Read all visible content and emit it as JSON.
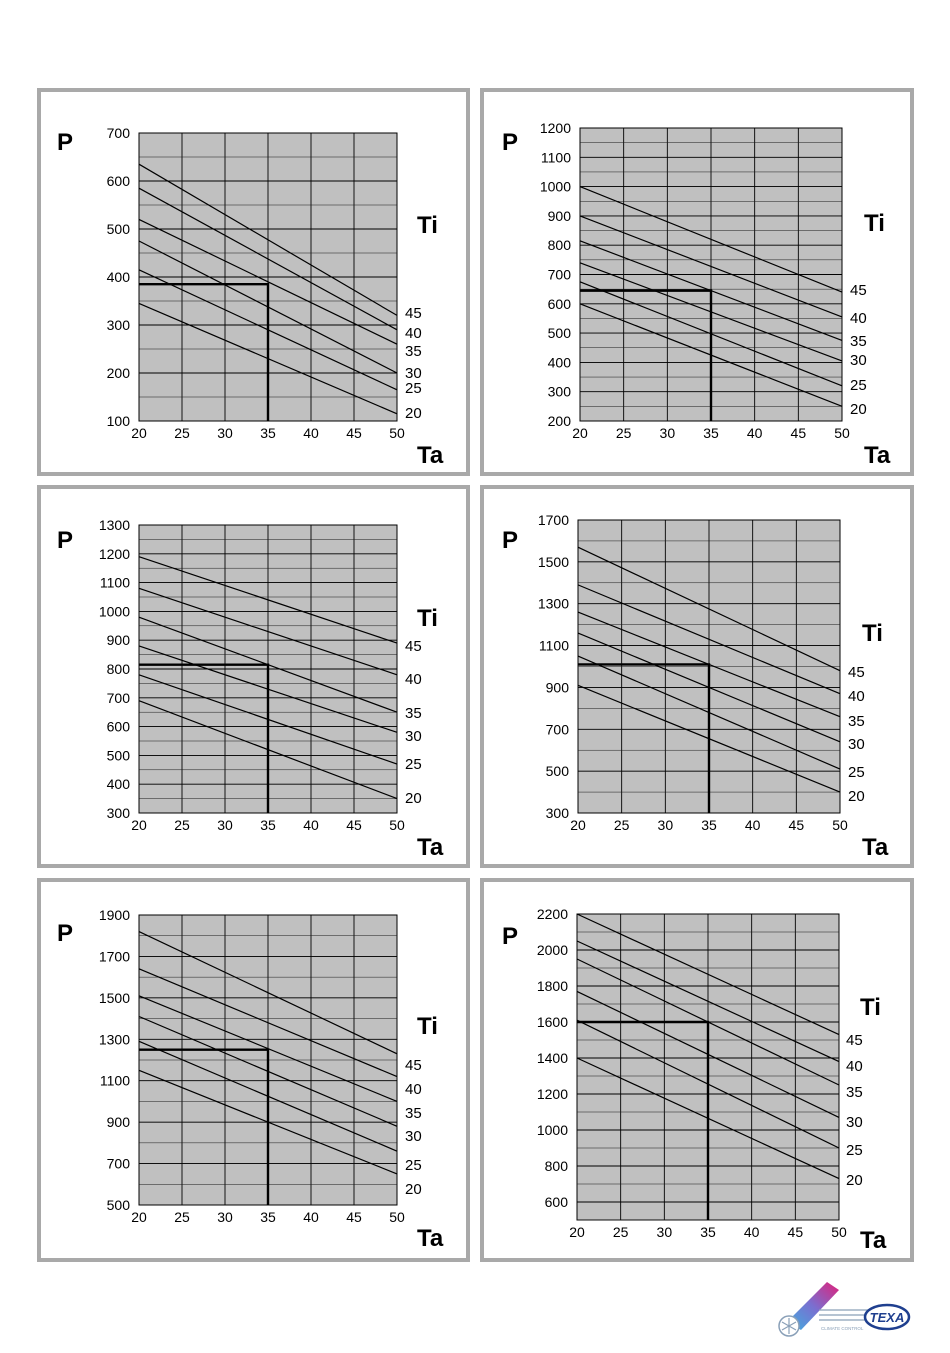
{
  "chart_data": [
    {
      "type": "line",
      "ylabel": "P",
      "xlabel": "Ta",
      "legend_title": "Ti",
      "xlim": [
        20,
        50
      ],
      "ylim": [
        100,
        700
      ],
      "xticks": [
        20,
        25,
        30,
        35,
        40,
        45,
        50
      ],
      "yticks": [
        100,
        200,
        300,
        400,
        500,
        600,
        700
      ],
      "grid": true,
      "series": [
        {
          "name": "45",
          "x": [
            20,
            50
          ],
          "y": [
            635,
            320
          ]
        },
        {
          "name": "40",
          "x": [
            20,
            50
          ],
          "y": [
            585,
            290
          ]
        },
        {
          "name": "35",
          "x": [
            20,
            50
          ],
          "y": [
            520,
            260
          ]
        },
        {
          "name": "30",
          "x": [
            20,
            50
          ],
          "y": [
            475,
            200
          ]
        },
        {
          "name": "25",
          "x": [
            20,
            50
          ],
          "y": [
            415,
            165
          ]
        },
        {
          "name": "20",
          "x": [
            20,
            50
          ],
          "y": [
            345,
            115
          ]
        }
      ],
      "marker": {
        "x": 35,
        "y": 385
      }
    },
    {
      "type": "line",
      "ylabel": "P",
      "xlabel": "Ta",
      "legend_title": "Ti",
      "xlim": [
        20,
        50
      ],
      "ylim": [
        200,
        1200
      ],
      "xticks": [
        20,
        25,
        30,
        35,
        40,
        45,
        50
      ],
      "yticks": [
        200,
        300,
        400,
        500,
        600,
        700,
        800,
        900,
        1000,
        1100,
        1200
      ],
      "grid": true,
      "series": [
        {
          "name": "45",
          "x": [
            20,
            50
          ],
          "y": [
            1000,
            640
          ]
        },
        {
          "name": "40",
          "x": [
            20,
            50
          ],
          "y": [
            900,
            555
          ]
        },
        {
          "name": "35",
          "x": [
            20,
            50
          ],
          "y": [
            815,
            475
          ]
        },
        {
          "name": "30",
          "x": [
            20,
            50
          ],
          "y": [
            740,
            405
          ]
        },
        {
          "name": "25",
          "x": [
            20,
            50
          ],
          "y": [
            675,
            320
          ]
        },
        {
          "name": "20",
          "x": [
            20,
            50
          ],
          "y": [
            600,
            250
          ]
        }
      ],
      "marker": {
        "x": 35,
        "y": 645
      }
    },
    {
      "type": "line",
      "ylabel": "P",
      "xlabel": "Ta",
      "legend_title": "Ti",
      "xlim": [
        20,
        50
      ],
      "ylim": [
        300,
        1300
      ],
      "xticks": [
        20,
        25,
        30,
        35,
        40,
        45,
        50
      ],
      "yticks": [
        300,
        400,
        500,
        600,
        700,
        800,
        900,
        1000,
        1100,
        1200,
        1300
      ],
      "grid": true,
      "series": [
        {
          "name": "45",
          "x": [
            20,
            50
          ],
          "y": [
            1190,
            890
          ]
        },
        {
          "name": "40",
          "x": [
            20,
            50
          ],
          "y": [
            1080,
            780
          ]
        },
        {
          "name": "35",
          "x": [
            20,
            50
          ],
          "y": [
            980,
            650
          ]
        },
        {
          "name": "30",
          "x": [
            20,
            50
          ],
          "y": [
            880,
            580
          ]
        },
        {
          "name": "25",
          "x": [
            20,
            50
          ],
          "y": [
            780,
            470
          ]
        },
        {
          "name": "20",
          "x": [
            20,
            50
          ],
          "y": [
            690,
            350
          ]
        }
      ],
      "marker": {
        "x": 35,
        "y": 815
      }
    },
    {
      "type": "line",
      "ylabel": "P",
      "xlabel": "Ta",
      "legend_title": "Ti",
      "xlim": [
        20,
        50
      ],
      "ylim": [
        300,
        1700
      ],
      "xticks": [
        20,
        25,
        30,
        35,
        40,
        45,
        50
      ],
      "yticks": [
        300,
        500,
        700,
        900,
        1100,
        1300,
        1500,
        1700
      ],
      "grid": true,
      "series": [
        {
          "name": "45",
          "x": [
            20,
            50
          ],
          "y": [
            1570,
            980
          ]
        },
        {
          "name": "40",
          "x": [
            20,
            50
          ],
          "y": [
            1390,
            870
          ]
        },
        {
          "name": "35",
          "x": [
            20,
            50
          ],
          "y": [
            1260,
            760
          ]
        },
        {
          "name": "30",
          "x": [
            20,
            50
          ],
          "y": [
            1160,
            640
          ]
        },
        {
          "name": "25",
          "x": [
            20,
            50
          ],
          "y": [
            1050,
            510
          ]
        },
        {
          "name": "20",
          "x": [
            20,
            50
          ],
          "y": [
            910,
            400
          ]
        }
      ],
      "marker": {
        "x": 35,
        "y": 1010
      }
    },
    {
      "type": "line",
      "ylabel": "P",
      "xlabel": "Ta",
      "legend_title": "Ti",
      "xlim": [
        20,
        50
      ],
      "ylim": [
        500,
        1900
      ],
      "xticks": [
        20,
        25,
        30,
        35,
        40,
        45,
        50
      ],
      "yticks": [
        500,
        700,
        900,
        1100,
        1300,
        1500,
        1700,
        1900
      ],
      "grid": true,
      "series": [
        {
          "name": "45",
          "x": [
            20,
            50
          ],
          "y": [
            1820,
            1230
          ]
        },
        {
          "name": "40",
          "x": [
            20,
            50
          ],
          "y": [
            1640,
            1120
          ]
        },
        {
          "name": "35",
          "x": [
            20,
            50
          ],
          "y": [
            1510,
            1000
          ]
        },
        {
          "name": "30",
          "x": [
            20,
            50
          ],
          "y": [
            1410,
            880
          ]
        },
        {
          "name": "25",
          "x": [
            20,
            50
          ],
          "y": [
            1290,
            760
          ]
        },
        {
          "name": "20",
          "x": [
            20,
            50
          ],
          "y": [
            1150,
            650
          ]
        }
      ],
      "marker": {
        "x": 35,
        "y": 1250
      }
    },
    {
      "type": "line",
      "ylabel": "P",
      "xlabel": "Ta",
      "legend_title": "Ti",
      "xlim": [
        20,
        50
      ],
      "ylim": [
        500,
        2200
      ],
      "xticks": [
        20,
        25,
        30,
        35,
        40,
        45,
        50
      ],
      "yticks": [
        600,
        800,
        1000,
        1200,
        1400,
        1600,
        1800,
        2000,
        2200
      ],
      "grid": true,
      "series": [
        {
          "name": "45",
          "x": [
            20,
            50
          ],
          "y": [
            2200,
            1530
          ]
        },
        {
          "name": "40",
          "x": [
            20,
            50
          ],
          "y": [
            2050,
            1380
          ]
        },
        {
          "name": "35",
          "x": [
            20,
            50
          ],
          "y": [
            1950,
            1250
          ]
        },
        {
          "name": "30",
          "x": [
            20,
            50
          ],
          "y": [
            1770,
            1070
          ]
        },
        {
          "name": "25",
          "x": [
            20,
            50
          ],
          "y": [
            1610,
            900
          ]
        },
        {
          "name": "20",
          "x": [
            20,
            50
          ],
          "y": [
            1400,
            730
          ]
        }
      ],
      "marker": {
        "x": 35,
        "y": 1600
      }
    }
  ],
  "logo": {
    "brand": "TEXA",
    "tagline": "CLIMATE CONTROL"
  },
  "colors": {
    "plot_bg": "#c0c0c0",
    "grid": "#000000",
    "line": "#000000",
    "frame": "#a9a9a9"
  }
}
